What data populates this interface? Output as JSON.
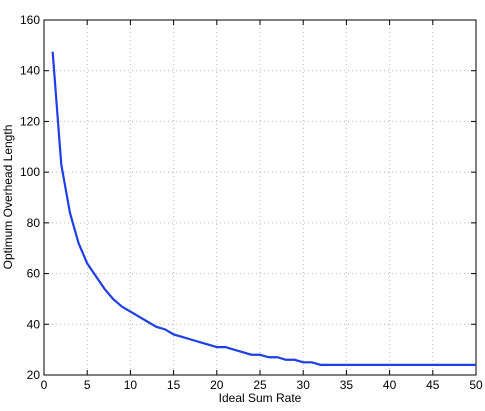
{
  "chart_data": {
    "type": "line",
    "xlabel": "Ideal Sum Rate",
    "ylabel": "Optimum Overhead Length",
    "x": [
      1,
      2,
      3,
      4,
      5,
      6,
      7,
      8,
      9,
      10,
      11,
      12,
      13,
      14,
      15,
      16,
      17,
      18,
      19,
      20,
      21,
      22,
      23,
      24,
      25,
      26,
      27,
      28,
      29,
      30,
      31,
      32,
      33,
      34,
      35,
      36,
      37,
      38,
      39,
      40,
      41,
      42,
      43,
      44,
      45,
      46,
      47,
      48,
      49,
      50
    ],
    "series": [
      {
        "color": "#1f3fe6",
        "values": [
          147.5,
          103,
          84,
          72,
          64,
          59,
          54,
          50,
          47,
          45,
          43,
          41,
          39,
          38,
          36,
          35,
          34,
          33,
          32,
          31,
          31,
          30,
          29,
          28,
          28,
          27,
          27,
          26,
          26,
          25,
          25,
          24,
          24,
          24,
          24,
          24,
          24,
          24,
          24,
          24,
          24,
          24,
          24,
          24,
          24,
          24,
          24,
          24,
          24,
          24
        ]
      }
    ],
    "xlim": [
      0,
      50
    ],
    "xticks": [
      0,
      5,
      10,
      15,
      20,
      25,
      30,
      35,
      40,
      45,
      50
    ],
    "ylim": [
      20,
      160
    ],
    "yticks": [
      20,
      40,
      60,
      80,
      100,
      120,
      140,
      160
    ],
    "grid": true
  }
}
